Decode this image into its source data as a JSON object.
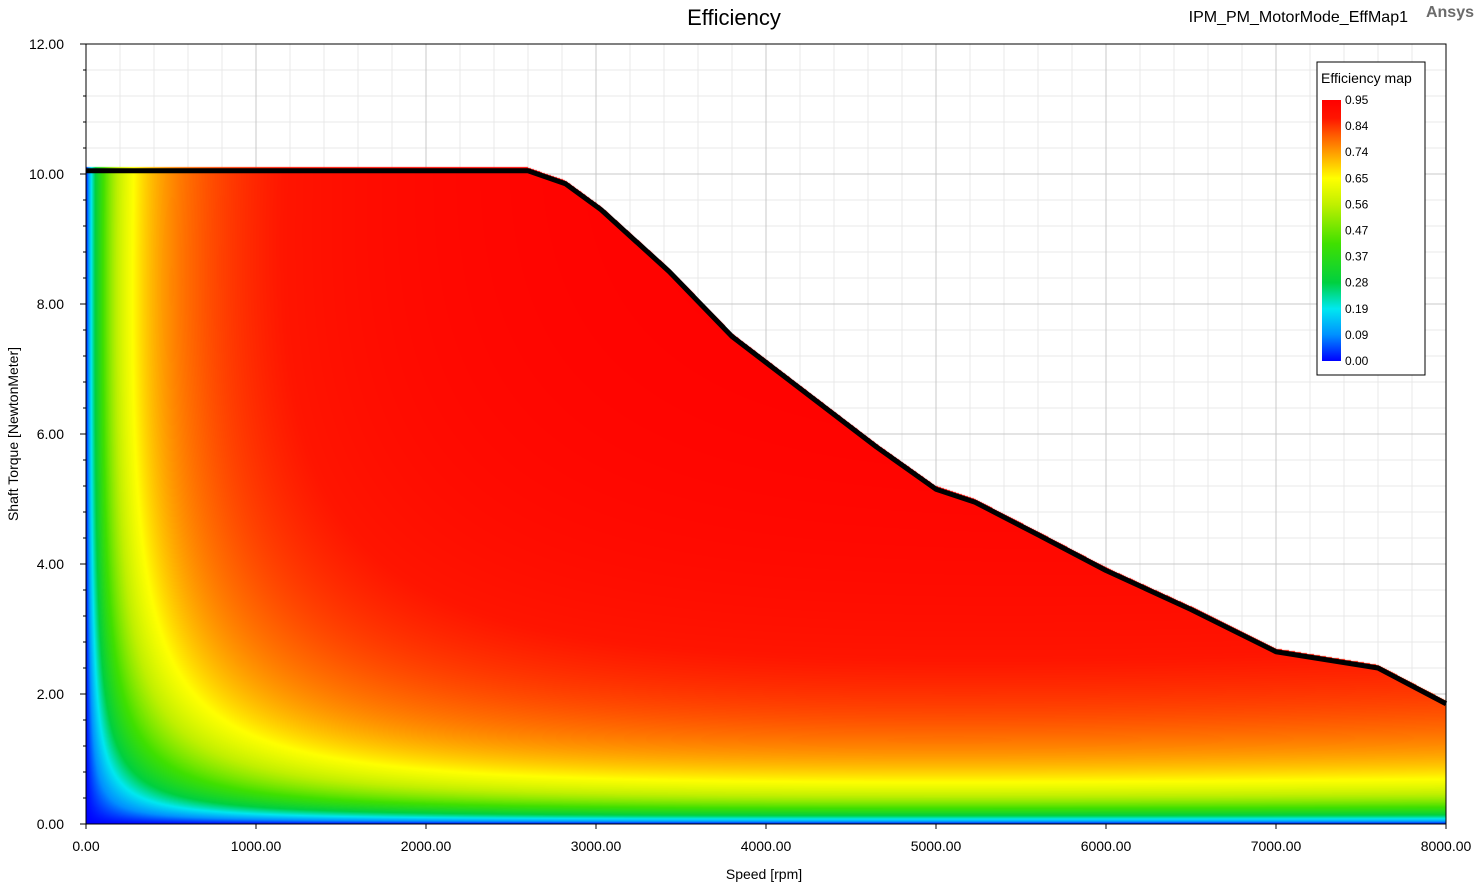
{
  "header": {
    "title": "Efficiency",
    "design_name": "IPM_PM_MotorMode_EffMap1",
    "brand": "Ansys"
  },
  "chart_data": {
    "type": "heatmap",
    "title": "Efficiency",
    "xlabel": "Speed [rpm]",
    "ylabel": "Shaft Torque [NewtonMeter]",
    "xlim": [
      0,
      8000
    ],
    "ylim": [
      0,
      12
    ],
    "x_ticks": [
      "0.00",
      "1000.00",
      "2000.00",
      "3000.00",
      "4000.00",
      "5000.00",
      "6000.00",
      "7000.00",
      "8000.00"
    ],
    "y_ticks": [
      "0.00",
      "2.00",
      "4.00",
      "6.00",
      "8.00",
      "10.00",
      "12.00"
    ],
    "grid": true,
    "legend": {
      "title": "Efficiency map",
      "placement": "top-right",
      "ticks": [
        "0.95",
        "0.84",
        "0.74",
        "0.65",
        "0.56",
        "0.47",
        "0.37",
        "0.28",
        "0.19",
        "0.09",
        "0.00"
      ],
      "min": 0.0,
      "max": 0.95
    },
    "torque_speed_envelope": {
      "x": [
        0,
        2600,
        2820,
        3030,
        3430,
        3800,
        4250,
        4650,
        5000,
        5230,
        5600,
        6000,
        6500,
        7000,
        7600,
        8000
      ],
      "y": [
        10.05,
        10.05,
        9.85,
        9.45,
        8.5,
        7.5,
        6.6,
        5.8,
        5.15,
        4.95,
        4.45,
        3.9,
        3.3,
        2.65,
        2.4,
        1.85
      ]
    },
    "colors": {
      "envelope_line": "#000000",
      "colormap": [
        "#0000ff",
        "#0090ff",
        "#00e8f0",
        "#00d040",
        "#40e000",
        "#c0f000",
        "#ffff00",
        "#ffb000",
        "#ff6000",
        "#ff1500",
        "#ff0000"
      ]
    }
  }
}
